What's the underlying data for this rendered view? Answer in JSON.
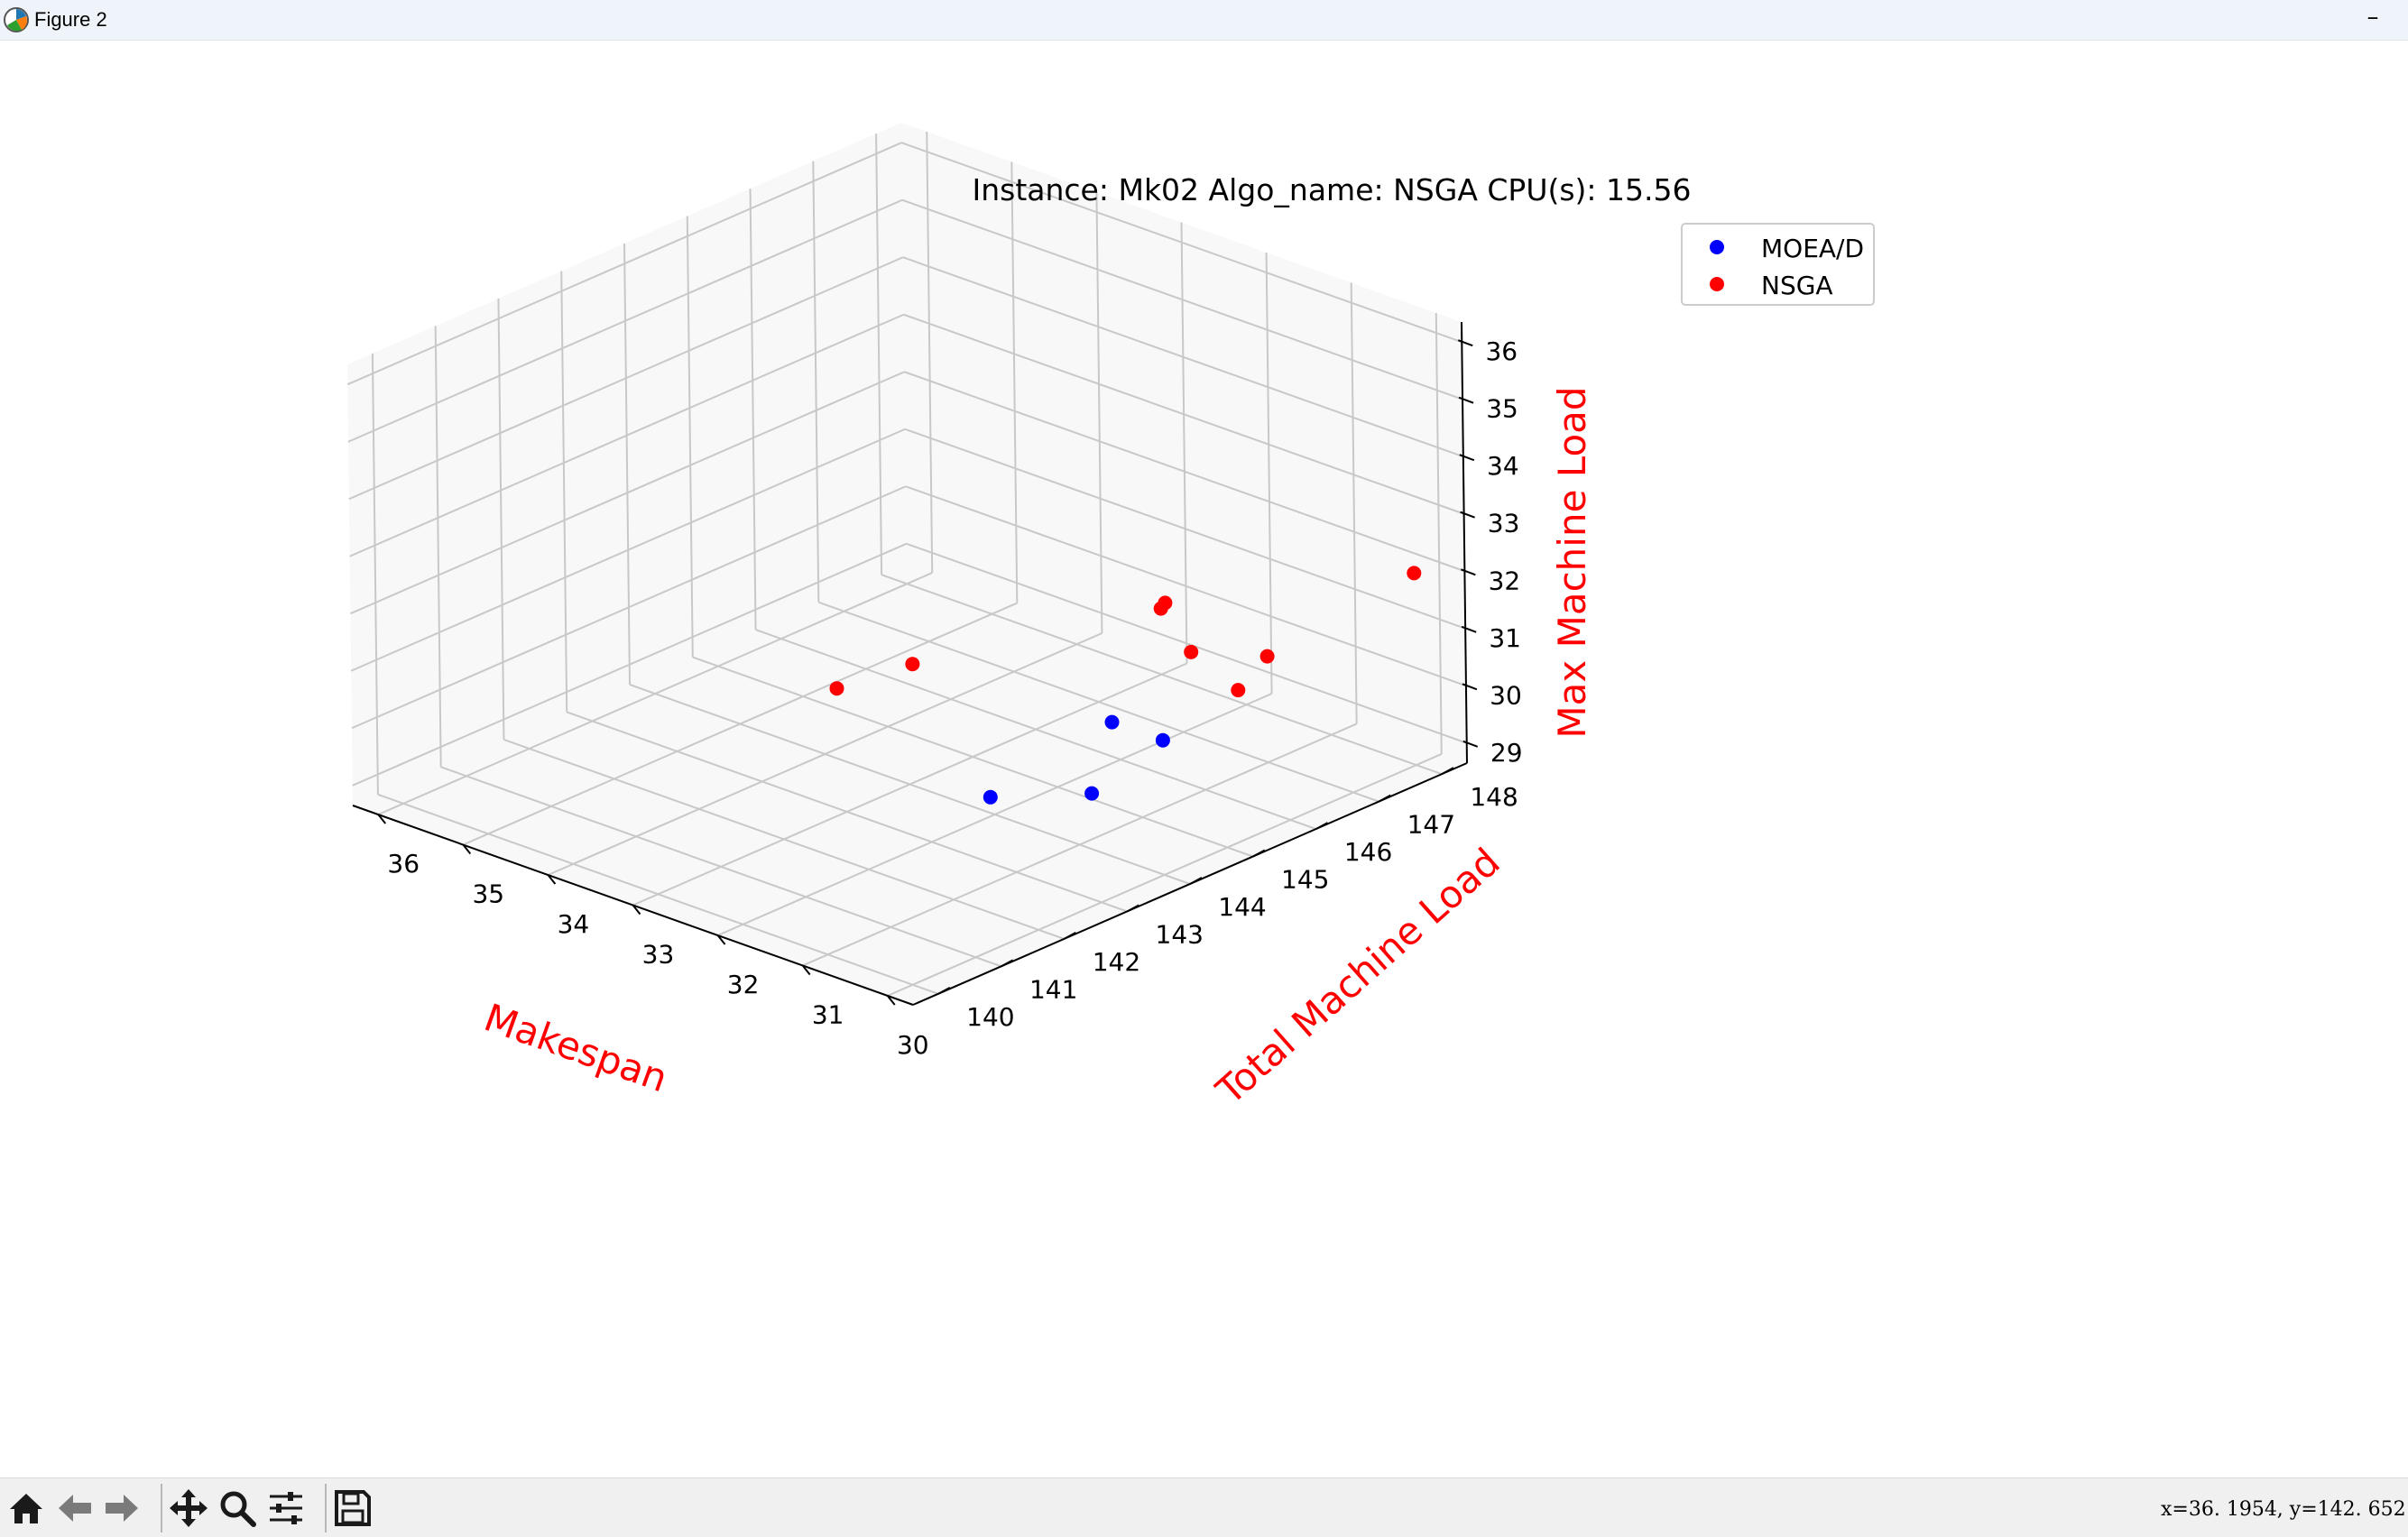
{
  "window": {
    "title": "Figure 2",
    "minimize_glyph": "–"
  },
  "figure": {
    "title": "Instance: Mk02 Algo_name: NSGA CPU(s): 15.56"
  },
  "colors": {
    "moead": "#0000ff",
    "nsga": "#ff0000",
    "axis_label": "#ff0000",
    "pane": "#f2f2f2",
    "grid": "#c8c8c8"
  },
  "chart_data": {
    "type": "scatter",
    "projection": "3d",
    "title": "Instance: Mk02 Algo_name: NSGA CPU(s): 15.56",
    "xlabel": "Makespan",
    "ylabel": "Total Machine Load",
    "zlabel": "Max Machine Load",
    "xlim": [
      29.7,
      36.3
    ],
    "ylim": [
      139.6,
      148.4
    ],
    "zlim": [
      28.65,
      36.35
    ],
    "x_ticks": [
      "30",
      "31",
      "32",
      "33",
      "34",
      "35",
      "36"
    ],
    "y_ticks": [
      "140",
      "141",
      "142",
      "143",
      "144",
      "145",
      "146",
      "147",
      "148"
    ],
    "z_ticks": [
      "29",
      "30",
      "31",
      "32",
      "33",
      "34",
      "35",
      "36"
    ],
    "grid": true,
    "legend_position": "top-right",
    "series": [
      {
        "name": "MOEA/D",
        "color": "#0000ff",
        "points": [
          {
            "x": 30,
            "y": 144,
            "z": 31
          },
          {
            "x": 30.6,
            "y": 144,
            "z": 31
          },
          {
            "x": 30.1,
            "y": 143,
            "z": 30.5
          },
          {
            "x": 31.3,
            "y": 143,
            "z": 29.8
          }
        ]
      },
      {
        "name": "NSGA",
        "color": "#ff0000",
        "points": [
          {
            "x": 30,
            "y": 148,
            "z": 32
          },
          {
            "x": 31,
            "y": 147,
            "z": 30.5
          },
          {
            "x": 31.9,
            "y": 147,
            "z": 30.1
          },
          {
            "x": 32.2,
            "y": 147,
            "z": 30.8
          },
          {
            "x": 30.6,
            "y": 146,
            "z": 30.6
          },
          {
            "x": 33.7,
            "y": 145,
            "z": 29.9
          },
          {
            "x": 33,
            "y": 148,
            "z": 29.8
          },
          {
            "x": 34.6,
            "y": 145,
            "z": 29
          }
        ]
      }
    ]
  },
  "toolbar": {
    "home_icon": "home-icon",
    "back_icon": "back-arrow-icon",
    "forward_icon": "forward-arrow-icon",
    "pan_icon": "move-arrows-icon",
    "zoom_icon": "magnifier-icon",
    "config_icon": "sliders-icon",
    "save_icon": "floppy-disk-icon",
    "coordinates": "x=36. 1954,   y=142. 652"
  }
}
